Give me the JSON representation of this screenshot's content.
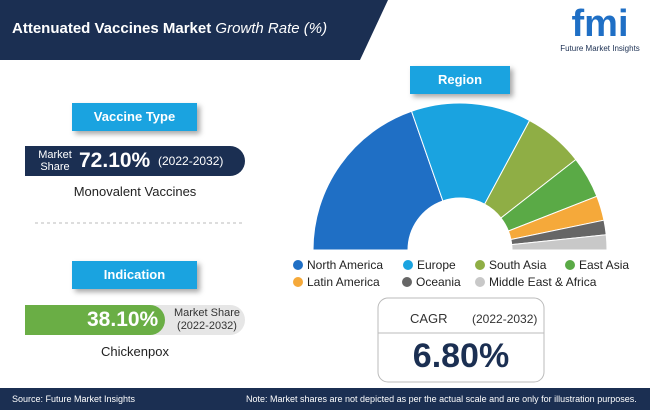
{
  "header": {
    "title": "Attenuated Vaccines Market",
    "subtitle": "Growth Rate (%)"
  },
  "logo": {
    "mark": "fmi",
    "text": "Future Market Insights"
  },
  "vaccine_type": {
    "heading": "Vaccine Type",
    "label": "Market Share",
    "value": "72.10%",
    "period": "(2022-2032)",
    "segment": "Monovalent Vaccines"
  },
  "indication": {
    "heading": "Indication",
    "value": "38.10%",
    "label": "Market Share",
    "period": "(2022-2032)",
    "segment": "Chickenpox"
  },
  "chart_data": {
    "type": "pie",
    "title": "Region",
    "categories": [
      "North America",
      "Europe",
      "South Asia",
      "East Asia",
      "Latin America",
      "Oceania",
      "Middle East & Africa"
    ],
    "values": [
      39.3,
      26.4,
      13.2,
      9.2,
      5.4,
      3.2,
      3.3
    ],
    "colors": [
      "#1f6fc5",
      "#1aa3e0",
      "#8fae45",
      "#5aaa46",
      "#f5a93a",
      "#666666",
      "#c8c8c8"
    ]
  },
  "cagr": {
    "label": "CAGR",
    "period": "(2022-2032)",
    "value": "6.80%"
  },
  "footer": {
    "source": "Source: Future Market Insights",
    "note": "Note: Market shares are not depicted as per the actual scale and are only for illustration purposes."
  }
}
